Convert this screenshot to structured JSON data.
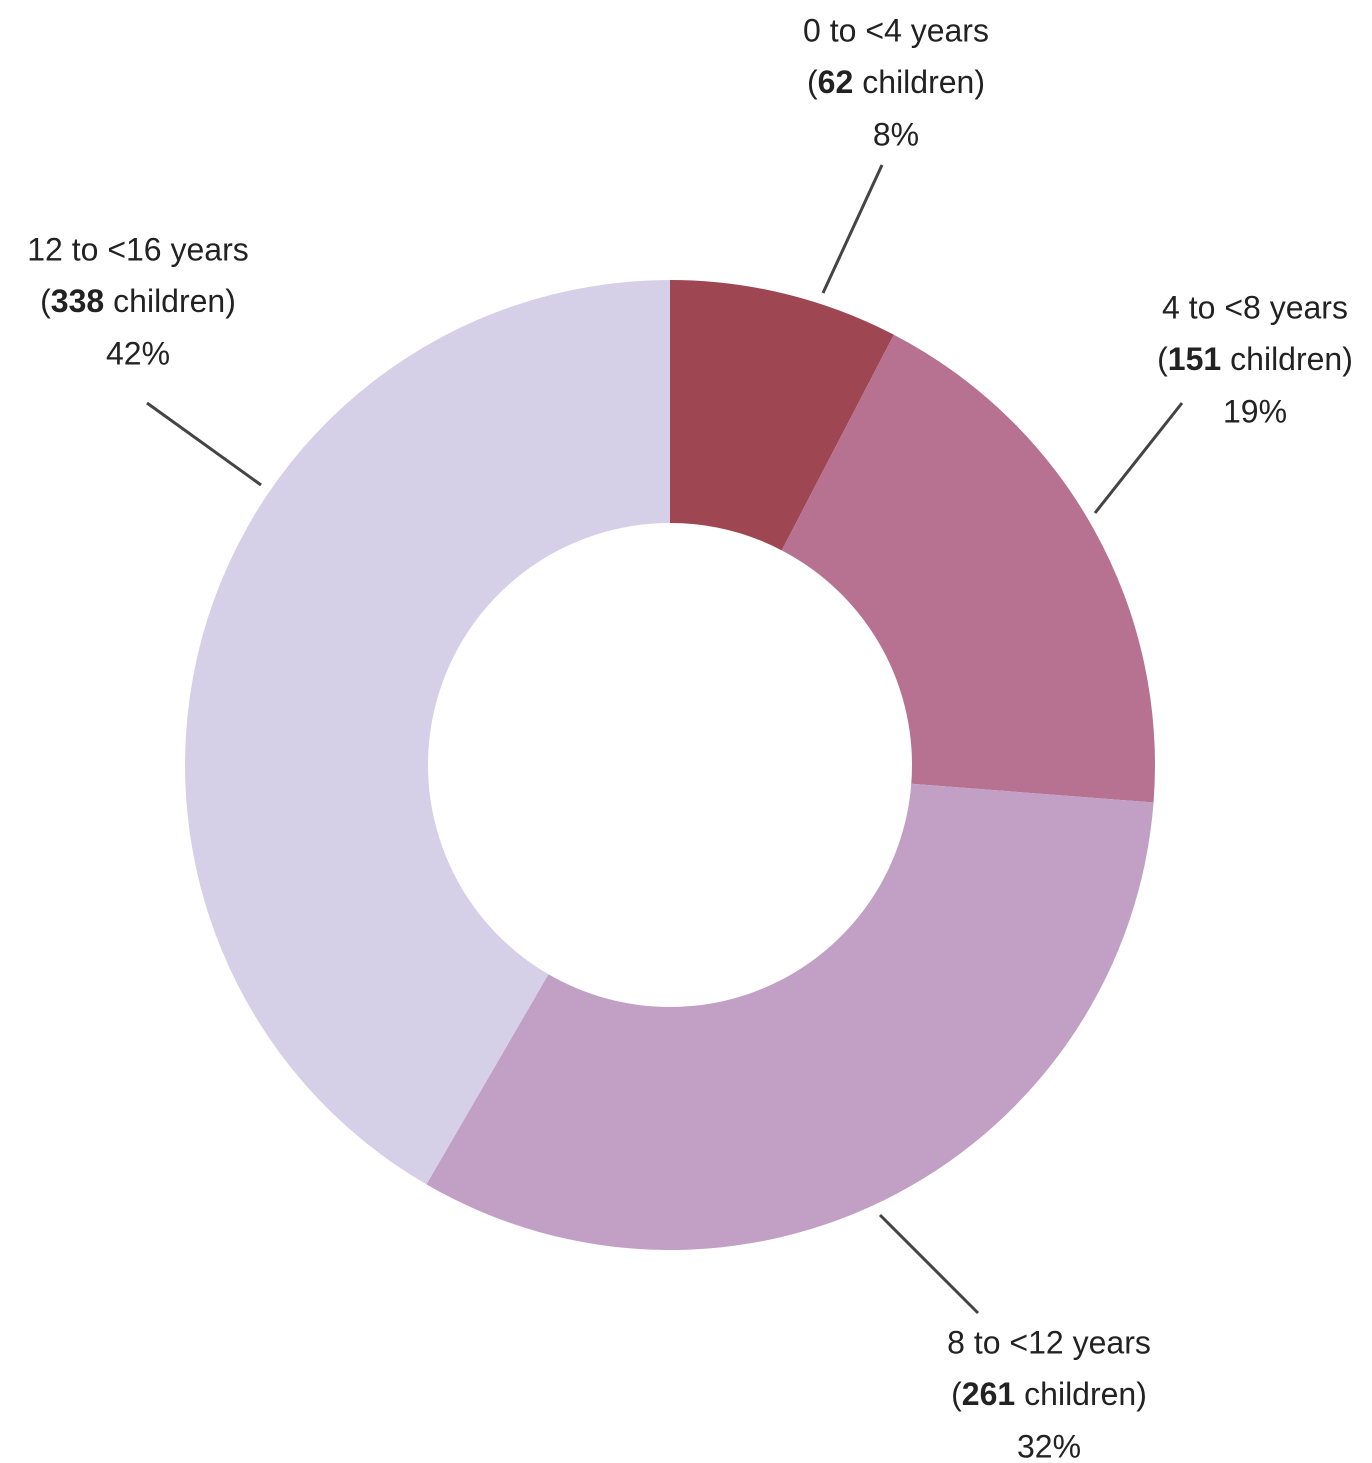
{
  "chart_data": {
    "type": "donut",
    "categories": [
      "0 to <4 years",
      "4 to <8 years",
      "8 to <12 years",
      "12 to <16 years"
    ],
    "values": [
      62,
      151,
      261,
      338
    ],
    "percent_labels": [
      "8%",
      "19%",
      "32%",
      "42%"
    ],
    "count_prefix": "(",
    "count_suffix": "children)",
    "colors": [
      "#9e4652",
      "#b77291",
      "#c29fc5",
      "#d5d0e8"
    ]
  }
}
